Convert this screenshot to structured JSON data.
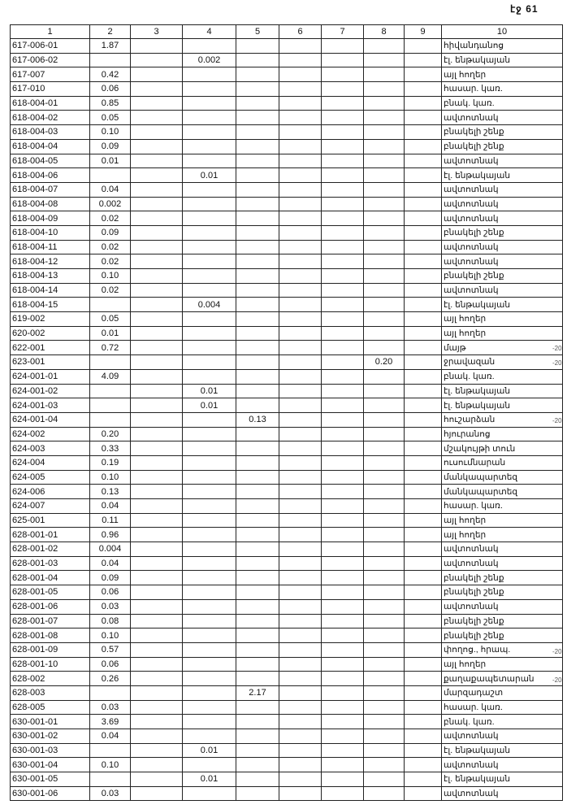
{
  "page_number": "էջ 61",
  "headers": [
    "1",
    "2",
    "3",
    "4",
    "5",
    "6",
    "7",
    "8",
    "9",
    "10"
  ],
  "rows": [
    [
      "617-006-01",
      "1.87",
      "",
      "",
      "",
      "",
      "",
      "",
      "",
      "հիվանդանոց"
    ],
    [
      "617-006-02",
      "",
      "",
      "0.002",
      "",
      "",
      "",
      "",
      "",
      "էլ. ենթակայան"
    ],
    [
      "617-007",
      "0.42",
      "",
      "",
      "",
      "",
      "",
      "",
      "",
      "այլ հողեր"
    ],
    [
      "617-010",
      "0.06",
      "",
      "",
      "",
      "",
      "",
      "",
      "",
      "հասար. կառ."
    ],
    [
      "618-004-01",
      "0.85",
      "",
      "",
      "",
      "",
      "",
      "",
      "",
      "բնակ. կառ."
    ],
    [
      "618-004-02",
      "0.05",
      "",
      "",
      "",
      "",
      "",
      "",
      "",
      "ավտոտնակ"
    ],
    [
      "618-004-03",
      "0.10",
      "",
      "",
      "",
      "",
      "",
      "",
      "",
      "բնակելի շենք"
    ],
    [
      "618-004-04",
      "0.09",
      "",
      "",
      "",
      "",
      "",
      "",
      "",
      "բնակելի շենք"
    ],
    [
      "618-004-05",
      "0.01",
      "",
      "",
      "",
      "",
      "",
      "",
      "",
      "ավտոտնակ"
    ],
    [
      "618-004-06",
      "",
      "",
      "0.01",
      "",
      "",
      "",
      "",
      "",
      "էլ. ենթակայան"
    ],
    [
      "618-004-07",
      "0.04",
      "",
      "",
      "",
      "",
      "",
      "",
      "",
      "ավտոտնակ"
    ],
    [
      "618-004-08",
      "0.002",
      "",
      "",
      "",
      "",
      "",
      "",
      "",
      "ավտոտնակ"
    ],
    [
      "618-004-09",
      "0.02",
      "",
      "",
      "",
      "",
      "",
      "",
      "",
      "ավտոտնակ"
    ],
    [
      "618-004-10",
      "0.09",
      "",
      "",
      "",
      "",
      "",
      "",
      "",
      "բնակելի շենք"
    ],
    [
      "618-004-11",
      "0.02",
      "",
      "",
      "",
      "",
      "",
      "",
      "",
      "ավտոտնակ"
    ],
    [
      "618-004-12",
      "0.02",
      "",
      "",
      "",
      "",
      "",
      "",
      "",
      "ավտոտնակ"
    ],
    [
      "618-004-13",
      "0.10",
      "",
      "",
      "",
      "",
      "",
      "",
      "",
      "բնակելի շենք"
    ],
    [
      "618-004-14",
      "0.02",
      "",
      "",
      "",
      "",
      "",
      "",
      "",
      "ավտոտնակ"
    ],
    [
      "618-004-15",
      "",
      "",
      "0.004",
      "",
      "",
      "",
      "",
      "",
      "էլ. ենթակայան"
    ],
    [
      "619-002",
      "0.05",
      "",
      "",
      "",
      "",
      "",
      "",
      "",
      "այլ հողեր"
    ],
    [
      "620-002",
      "0.01",
      "",
      "",
      "",
      "",
      "",
      "",
      "",
      "այլ հողեր"
    ],
    [
      "622-001",
      "0.72",
      "",
      "",
      "",
      "",
      "",
      "",
      "",
      "մայթ"
    ],
    [
      "623-001",
      "",
      "",
      "",
      "",
      "",
      "",
      "0.20",
      "",
      "ջրավազան"
    ],
    [
      "624-001-01",
      "4.09",
      "",
      "",
      "",
      "",
      "",
      "",
      "",
      "բնակ. կառ."
    ],
    [
      "624-001-02",
      "",
      "",
      "0.01",
      "",
      "",
      "",
      "",
      "",
      "էլ. ենթակայան"
    ],
    [
      "624-001-03",
      "",
      "",
      "0.01",
      "",
      "",
      "",
      "",
      "",
      "էլ. ենթակայան"
    ],
    [
      "624-001-04",
      "",
      "",
      "",
      "0.13",
      "",
      "",
      "",
      "",
      "հուշարձան"
    ],
    [
      "624-002",
      "0.20",
      "",
      "",
      "",
      "",
      "",
      "",
      "",
      "հյուրանոց"
    ],
    [
      "624-003",
      "0.33",
      "",
      "",
      "",
      "",
      "",
      "",
      "",
      "մշակույթի տուն"
    ],
    [
      "624-004",
      "0.19",
      "",
      "",
      "",
      "",
      "",
      "",
      "",
      "ուսումնարան"
    ],
    [
      "624-005",
      "0.10",
      "",
      "",
      "",
      "",
      "",
      "",
      "",
      "մանկապարտեզ"
    ],
    [
      "624-006",
      "0.13",
      "",
      "",
      "",
      "",
      "",
      "",
      "",
      "մանկապարտեզ"
    ],
    [
      "624-007",
      "0.04",
      "",
      "",
      "",
      "",
      "",
      "",
      "",
      "հասար. կառ."
    ],
    [
      "625-001",
      "0.11",
      "",
      "",
      "",
      "",
      "",
      "",
      "",
      "այլ հողեր"
    ],
    [
      "628-001-01",
      "0.96",
      "",
      "",
      "",
      "",
      "",
      "",
      "",
      "այլ հողեր"
    ],
    [
      "628-001-02",
      "0.004",
      "",
      "",
      "",
      "",
      "",
      "",
      "",
      "ավտոտնակ"
    ],
    [
      "628-001-03",
      "0.04",
      "",
      "",
      "",
      "",
      "",
      "",
      "",
      "ավտոտնակ"
    ],
    [
      "628-001-04",
      "0.09",
      "",
      "",
      "",
      "",
      "",
      "",
      "",
      "բնակելի շենք"
    ],
    [
      "628-001-05",
      "0.06",
      "",
      "",
      "",
      "",
      "",
      "",
      "",
      "բնակելի շենք"
    ],
    [
      "628-001-06",
      "0.03",
      "",
      "",
      "",
      "",
      "",
      "",
      "",
      "ավտոտնակ"
    ],
    [
      "628-001-07",
      "0.08",
      "",
      "",
      "",
      "",
      "",
      "",
      "",
      "բնակելի շենք"
    ],
    [
      "628-001-08",
      "0.10",
      "",
      "",
      "",
      "",
      "",
      "",
      "",
      "բնակելի շենք"
    ],
    [
      "628-001-09",
      "0.57",
      "",
      "",
      "",
      "",
      "",
      "",
      "",
      "փողոց., հրապ."
    ],
    [
      "628-001-10",
      "0.06",
      "",
      "",
      "",
      "",
      "",
      "",
      "",
      "այլ հողեր"
    ],
    [
      "628-002",
      "0.26",
      "",
      "",
      "",
      "",
      "",
      "",
      "",
      "քաղաքապետարան"
    ],
    [
      "628-003",
      "",
      "",
      "",
      "2.17",
      "",
      "",
      "",
      "",
      "մարզադաշտ"
    ],
    [
      "628-005",
      "0.03",
      "",
      "",
      "",
      "",
      "",
      "",
      "",
      "հասար. կառ."
    ],
    [
      "630-001-01",
      "3.69",
      "",
      "",
      "",
      "",
      "",
      "",
      "",
      "բնակ. կառ."
    ],
    [
      "630-001-02",
      "0.04",
      "",
      "",
      "",
      "",
      "",
      "",
      "",
      "ավտոտնակ"
    ],
    [
      "630-001-03",
      "",
      "",
      "0.01",
      "",
      "",
      "",
      "",
      "",
      "էլ. ենթակայան"
    ],
    [
      "630-001-04",
      "0.10",
      "",
      "",
      "",
      "",
      "",
      "",
      "",
      "ավտոտնակ"
    ],
    [
      "630-001-05",
      "",
      "",
      "0.01",
      "",
      "",
      "",
      "",
      "",
      "էլ. ենթակայան"
    ],
    [
      "630-001-06",
      "0.03",
      "",
      "",
      "",
      "",
      "",
      "",
      "",
      "ավտոտնակ"
    ]
  ],
  "margin_notes": [
    {
      "row": 22,
      "text": "-20"
    },
    {
      "row": 23,
      "text": "-20"
    },
    {
      "row": 27,
      "text": "-20"
    },
    {
      "row": 43,
      "text": "-20"
    },
    {
      "row": 45,
      "text": "-20"
    }
  ]
}
